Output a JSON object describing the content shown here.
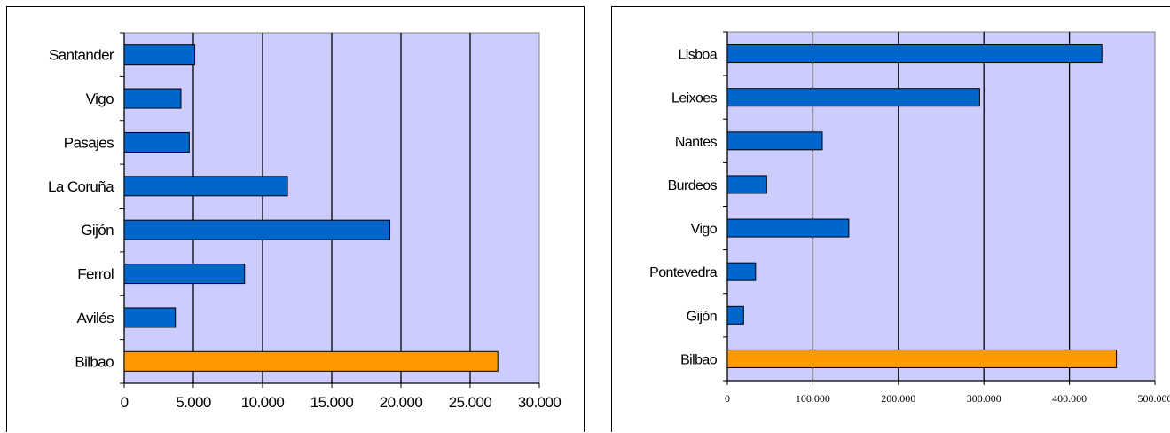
{
  "colors": {
    "plot_background": "#ccccff",
    "bar_default": "#0066cc",
    "bar_highlight": "#ff9900",
    "gridline": "#000000",
    "plot_border": "#808080"
  },
  "chart_data": [
    {
      "type": "bar",
      "orientation": "horizontal",
      "title": "",
      "xlabel": "",
      "ylabel": "",
      "categories": [
        "Santander",
        "Vigo",
        "Pasajes",
        "La Coruña",
        "Gijón",
        "Ferrol",
        "Avilés",
        "Bilbao"
      ],
      "values": [
        5100,
        4100,
        4700,
        11800,
        19200,
        8700,
        3700,
        27000
      ],
      "highlight": "Bilbao",
      "xlim": [
        0,
        30000
      ],
      "xticks": [
        0,
        5000,
        10000,
        15000,
        20000,
        25000,
        30000
      ],
      "xtick_labels": [
        "0",
        "5.000",
        "10.000",
        "15.000",
        "20.000",
        "25.000",
        "30.000"
      ],
      "grid": "vertical",
      "legend": "none"
    },
    {
      "type": "bar",
      "orientation": "horizontal",
      "title": "",
      "xlabel": "",
      "ylabel": "",
      "categories": [
        "Lisboa",
        "Leixoes",
        "Nantes",
        "Burdeos",
        "Vigo",
        "Pontevedra",
        "Gijón",
        "Bilbao"
      ],
      "values": [
        438000,
        295000,
        111000,
        46000,
        142000,
        33000,
        19000,
        455000
      ],
      "highlight": "Bilbao",
      "xlim": [
        0,
        500000
      ],
      "xticks": [
        0,
        100000,
        200000,
        300000,
        400000,
        500000
      ],
      "xtick_labels": [
        "0",
        "100.000",
        "200.000",
        "300.000",
        "400.000",
        "500.000"
      ],
      "grid": "vertical",
      "legend": "none"
    }
  ]
}
